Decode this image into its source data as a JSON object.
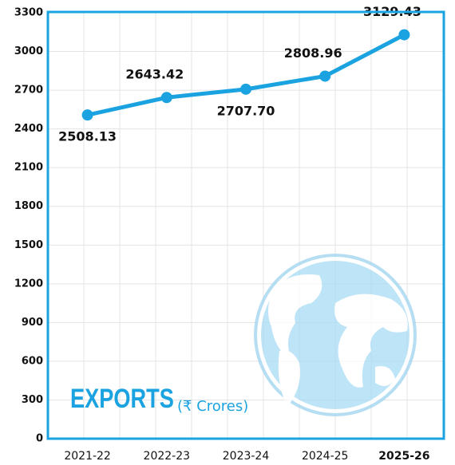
{
  "chart_data": {
    "type": "line",
    "annotation": "EXPORTS",
    "unit_label": "(₹ Crores)",
    "categories": [
      "2021-22",
      "2022-23",
      "2023-24",
      "2024-25",
      "2025-26"
    ],
    "values": [
      2508.13,
      2643.42,
      2707.7,
      2808.96,
      3129.43
    ],
    "value_labels": [
      "2508.13",
      "2643.42",
      "2707.70",
      "2808.96",
      "3129.43"
    ],
    "color": "#1aa3e0",
    "highlight": {
      "index": 4,
      "color": "#1aa3e0"
    },
    "ylim": [
      0,
      3300
    ],
    "yticks": [
      0,
      300,
      600,
      900,
      1200,
      1500,
      1800,
      2100,
      2400,
      2700,
      3000,
      3300
    ],
    "grid": true
  }
}
